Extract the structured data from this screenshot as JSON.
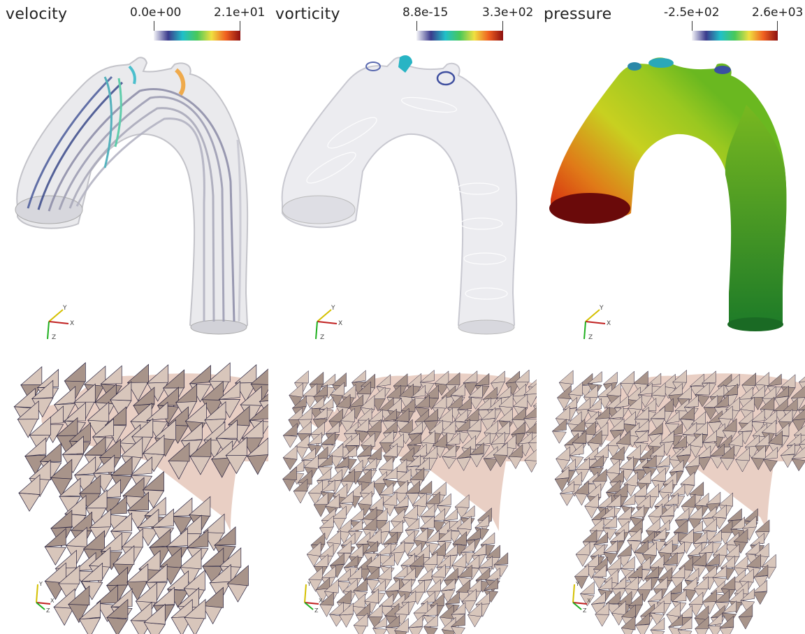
{
  "panels": [
    {
      "title": "velocity",
      "scalar_min": "0.0e+00",
      "scalar_max": "2.1e+01",
      "colormap": [
        "#f4f4f8",
        "#3a3a8c",
        "#20c0c8",
        "#48c85a",
        "#f0e040",
        "#f06020",
        "#8c1010"
      ]
    },
    {
      "title": "vorticity",
      "scalar_min": "8.8e-15",
      "scalar_max": "3.3e+02",
      "colormap": [
        "#f4f4f8",
        "#3a3a8c",
        "#20c0c8",
        "#48c85a",
        "#f0e040",
        "#f06020",
        "#8c1010"
      ]
    },
    {
      "title": "pressure",
      "scalar_min": "-2.5e+02",
      "scalar_max": "2.6e+03",
      "colormap": [
        "#f4f4f8",
        "#3a3a8c",
        "#20c0c8",
        "#48c85a",
        "#f0e040",
        "#f06020",
        "#8c1010"
      ]
    }
  ],
  "axes_labels": {
    "x": "X",
    "y": "Y",
    "z": "Z"
  },
  "colors": {
    "mesh_face": "#d8c6bb",
    "mesh_shade": "#a8948a",
    "mesh_edge": "#2a2440",
    "background_shape": "#e9cfc4",
    "vessel_glass": "#e6e6ea"
  }
}
